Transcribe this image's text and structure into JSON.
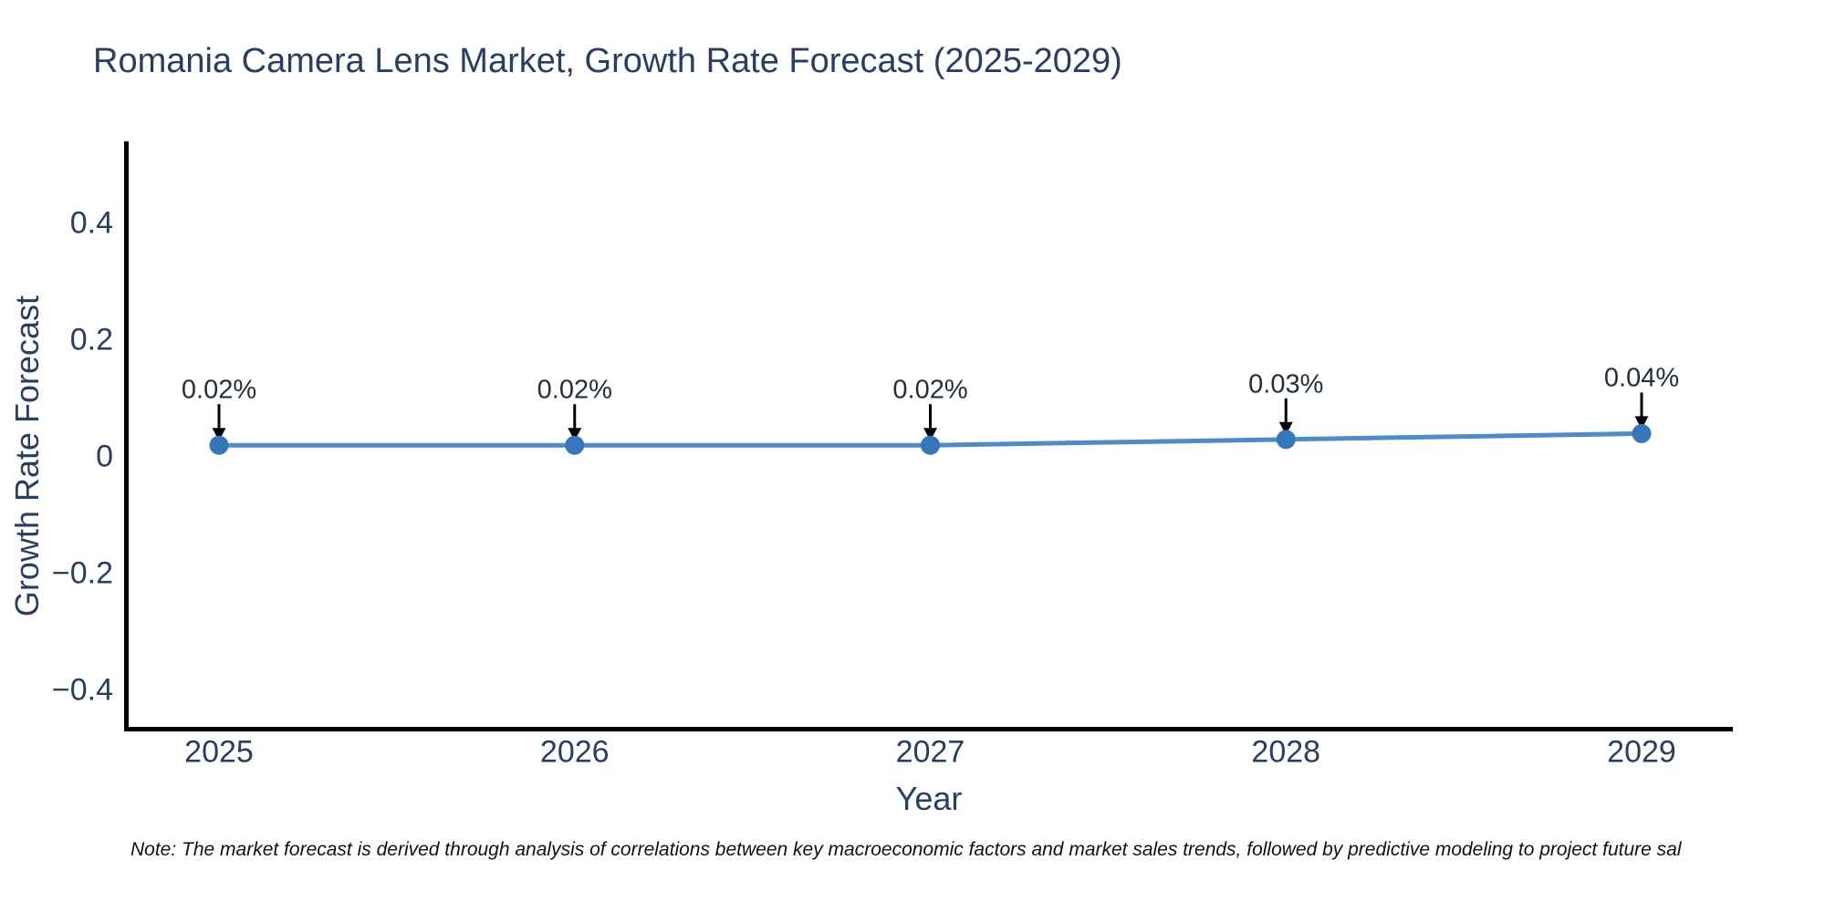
{
  "page": {
    "note": "Note: The market forecast is derived through analysis of correlations between key macroeconomic factors and market sales trends, followed by predictive modeling to project future sal"
  },
  "chart_data": {
    "type": "line",
    "title": "Romania Camera Lens Market, Growth Rate Forecast (2025-2029)",
    "xlabel": "Year",
    "ylabel": "Growth Rate Forecast",
    "categories": [
      "2025",
      "2026",
      "2027",
      "2028",
      "2029"
    ],
    "series": [
      {
        "name": "Growth Rate Forecast",
        "values": [
          0.02,
          0.02,
          0.02,
          0.03,
          0.04
        ]
      }
    ],
    "point_labels": [
      "0.02%",
      "0.02%",
      "0.02%",
      "0.03%",
      "0.04%"
    ],
    "yticks": [
      {
        "label": "0.4",
        "value": 0.4
      },
      {
        "label": "0.2",
        "value": 0.2
      },
      {
        "label": "0",
        "value": 0
      },
      {
        "label": "−0.2",
        "value": -0.2
      },
      {
        "label": "−0.4",
        "value": -0.4
      }
    ],
    "ylim": [
      -0.46,
      0.54
    ],
    "grid": false,
    "legend": "none",
    "annotation_style": "down-arrow",
    "colors": {
      "line": "#4e8cc8",
      "marker": "#3776b9",
      "axis": "#000000",
      "text": "#2a3f5f",
      "annotation": "#242f3b",
      "note": "#111111"
    }
  }
}
